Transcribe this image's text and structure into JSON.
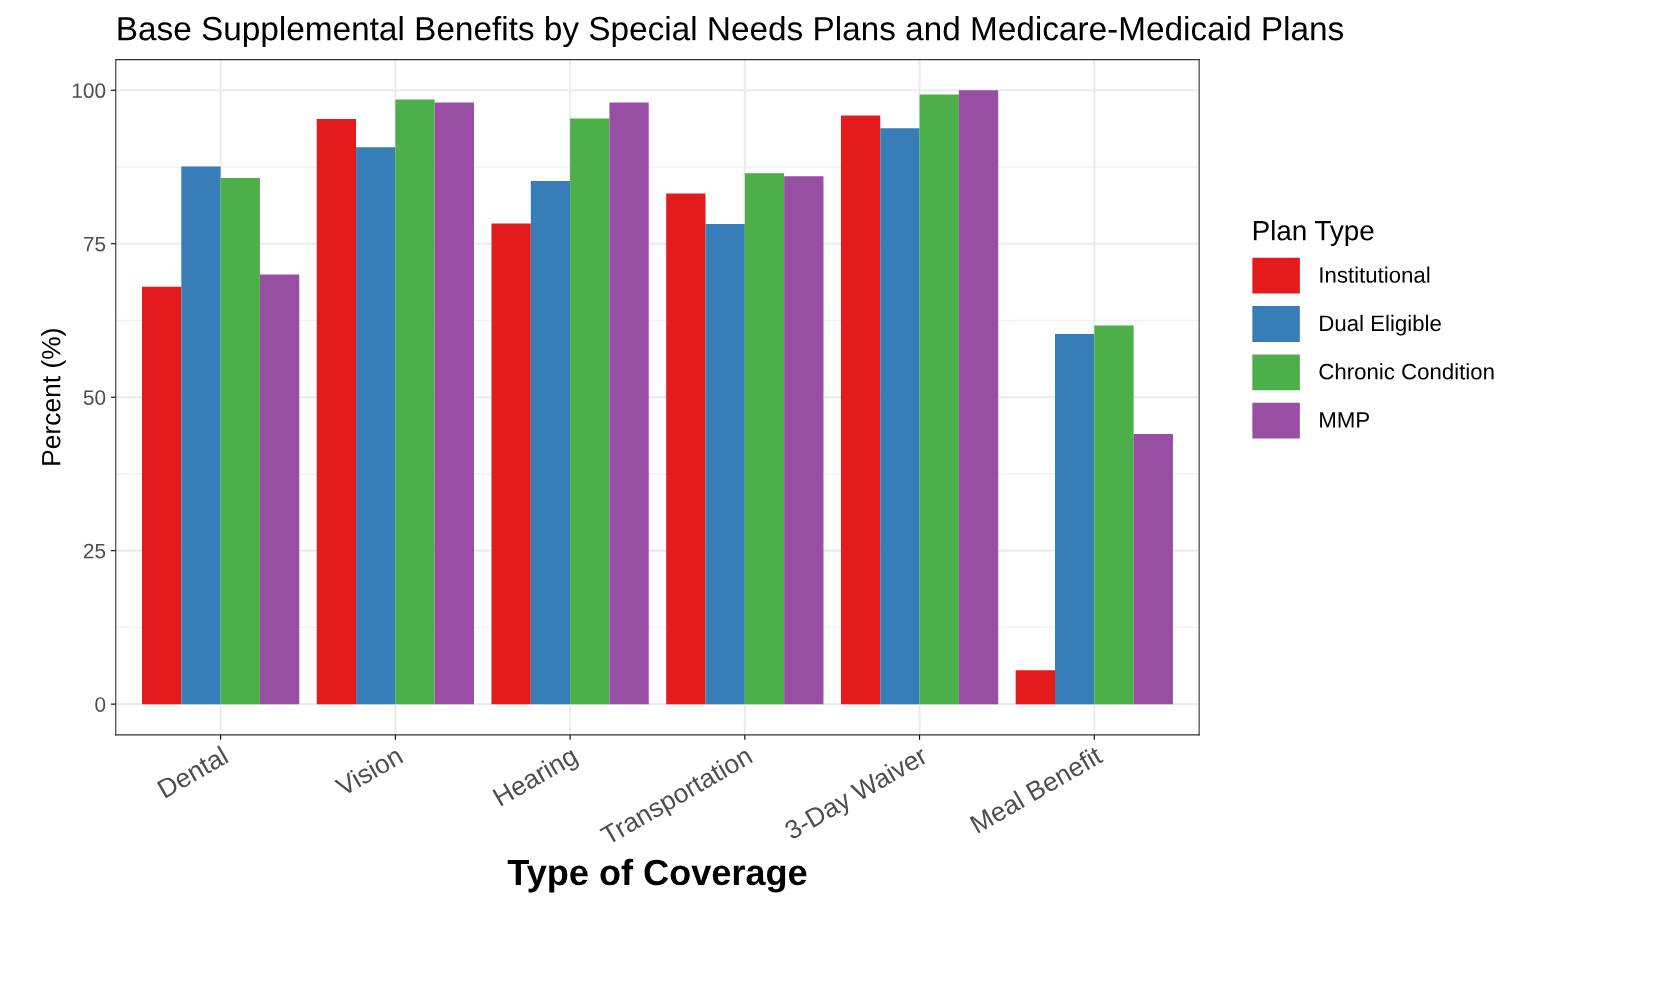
{
  "chart_data": {
    "type": "bar",
    "title": "Base Supplemental Benefits by Special Needs Plans and Medicare-Medicaid Plans",
    "xlabel": "Type of Coverage",
    "ylabel": "Percent (%)",
    "legend_title": "Plan Type",
    "categories": [
      "Dental",
      "Vision",
      "Hearing",
      "Transportation",
      "3-Day Waiver",
      "Meal Benefit"
    ],
    "series": [
      {
        "name": "Institutional",
        "color": "#e41a1c",
        "values": [
          68,
          95.3,
          78.3,
          83.2,
          95.9,
          5.5
        ]
      },
      {
        "name": "Dual Eligible",
        "color": "#377eb8",
        "values": [
          87.6,
          90.7,
          85.2,
          78.2,
          93.8,
          60.3
        ]
      },
      {
        "name": "Chronic Condition",
        "color": "#4daf4a",
        "values": [
          85.7,
          98.5,
          95.4,
          86.5,
          99.3,
          61.7
        ]
      },
      {
        "name": "MMP",
        "color": "#984ea3",
        "values": [
          70,
          98,
          98,
          86,
          100,
          44
        ]
      }
    ],
    "ylim": [
      -5,
      105
    ],
    "yticks": [
      0,
      25,
      50,
      75,
      100
    ],
    "grid": true,
    "legend": "right"
  }
}
